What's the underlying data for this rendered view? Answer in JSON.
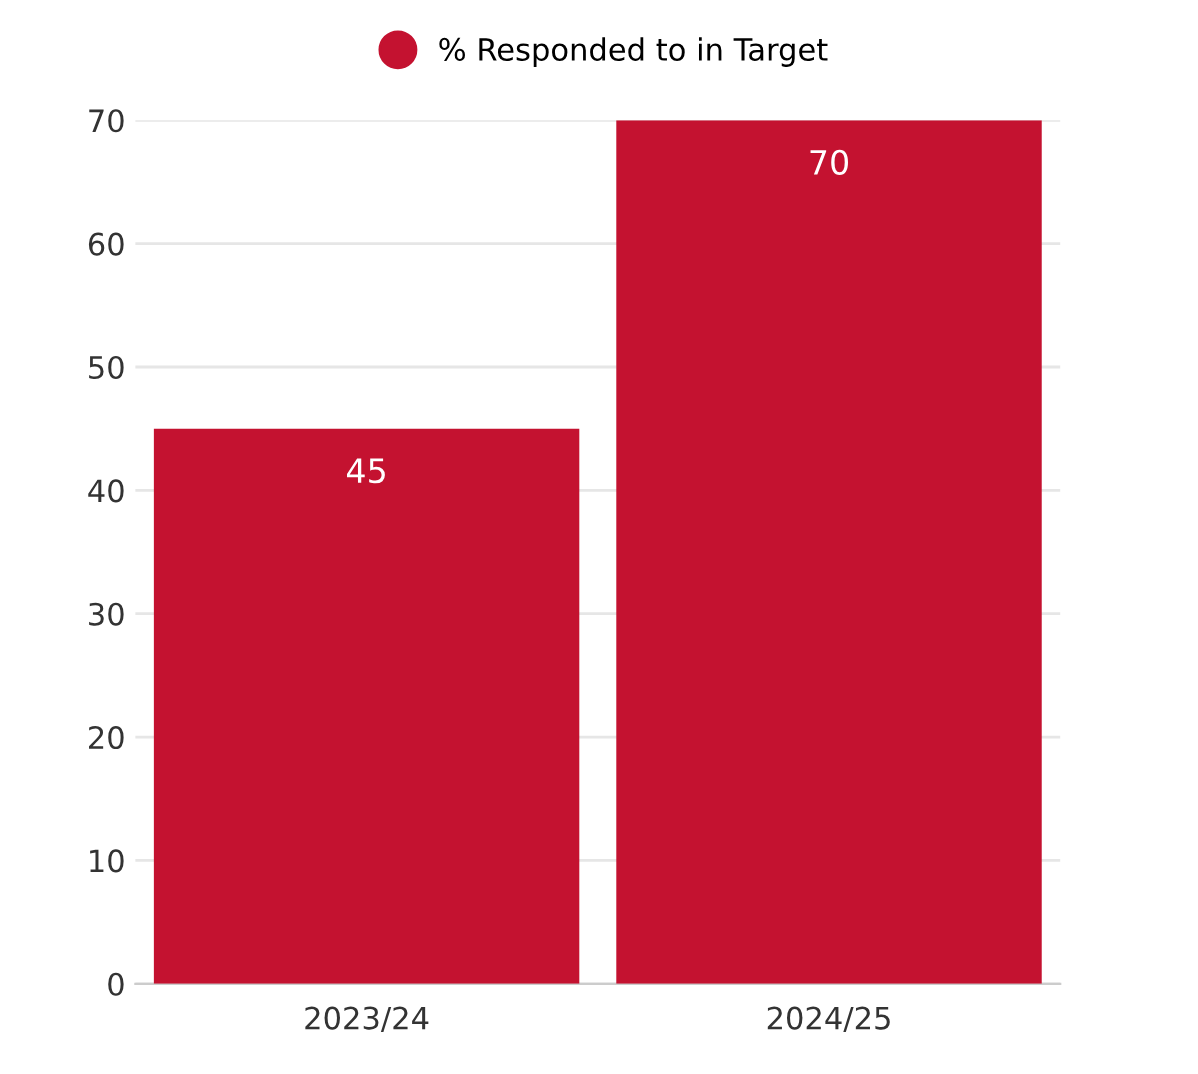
{
  "chart_data": {
    "type": "bar",
    "categories": [
      "2023/24",
      "2024/25"
    ],
    "series": [
      {
        "name": "% Responded to in Target",
        "color": "#c41230",
        "values": [
          45,
          70
        ]
      }
    ],
    "ylim": [
      0,
      70
    ],
    "yticks": [
      0,
      10,
      20,
      30,
      40,
      50,
      60,
      70
    ],
    "grid": "y",
    "legend": "top",
    "data_labels": true
  }
}
